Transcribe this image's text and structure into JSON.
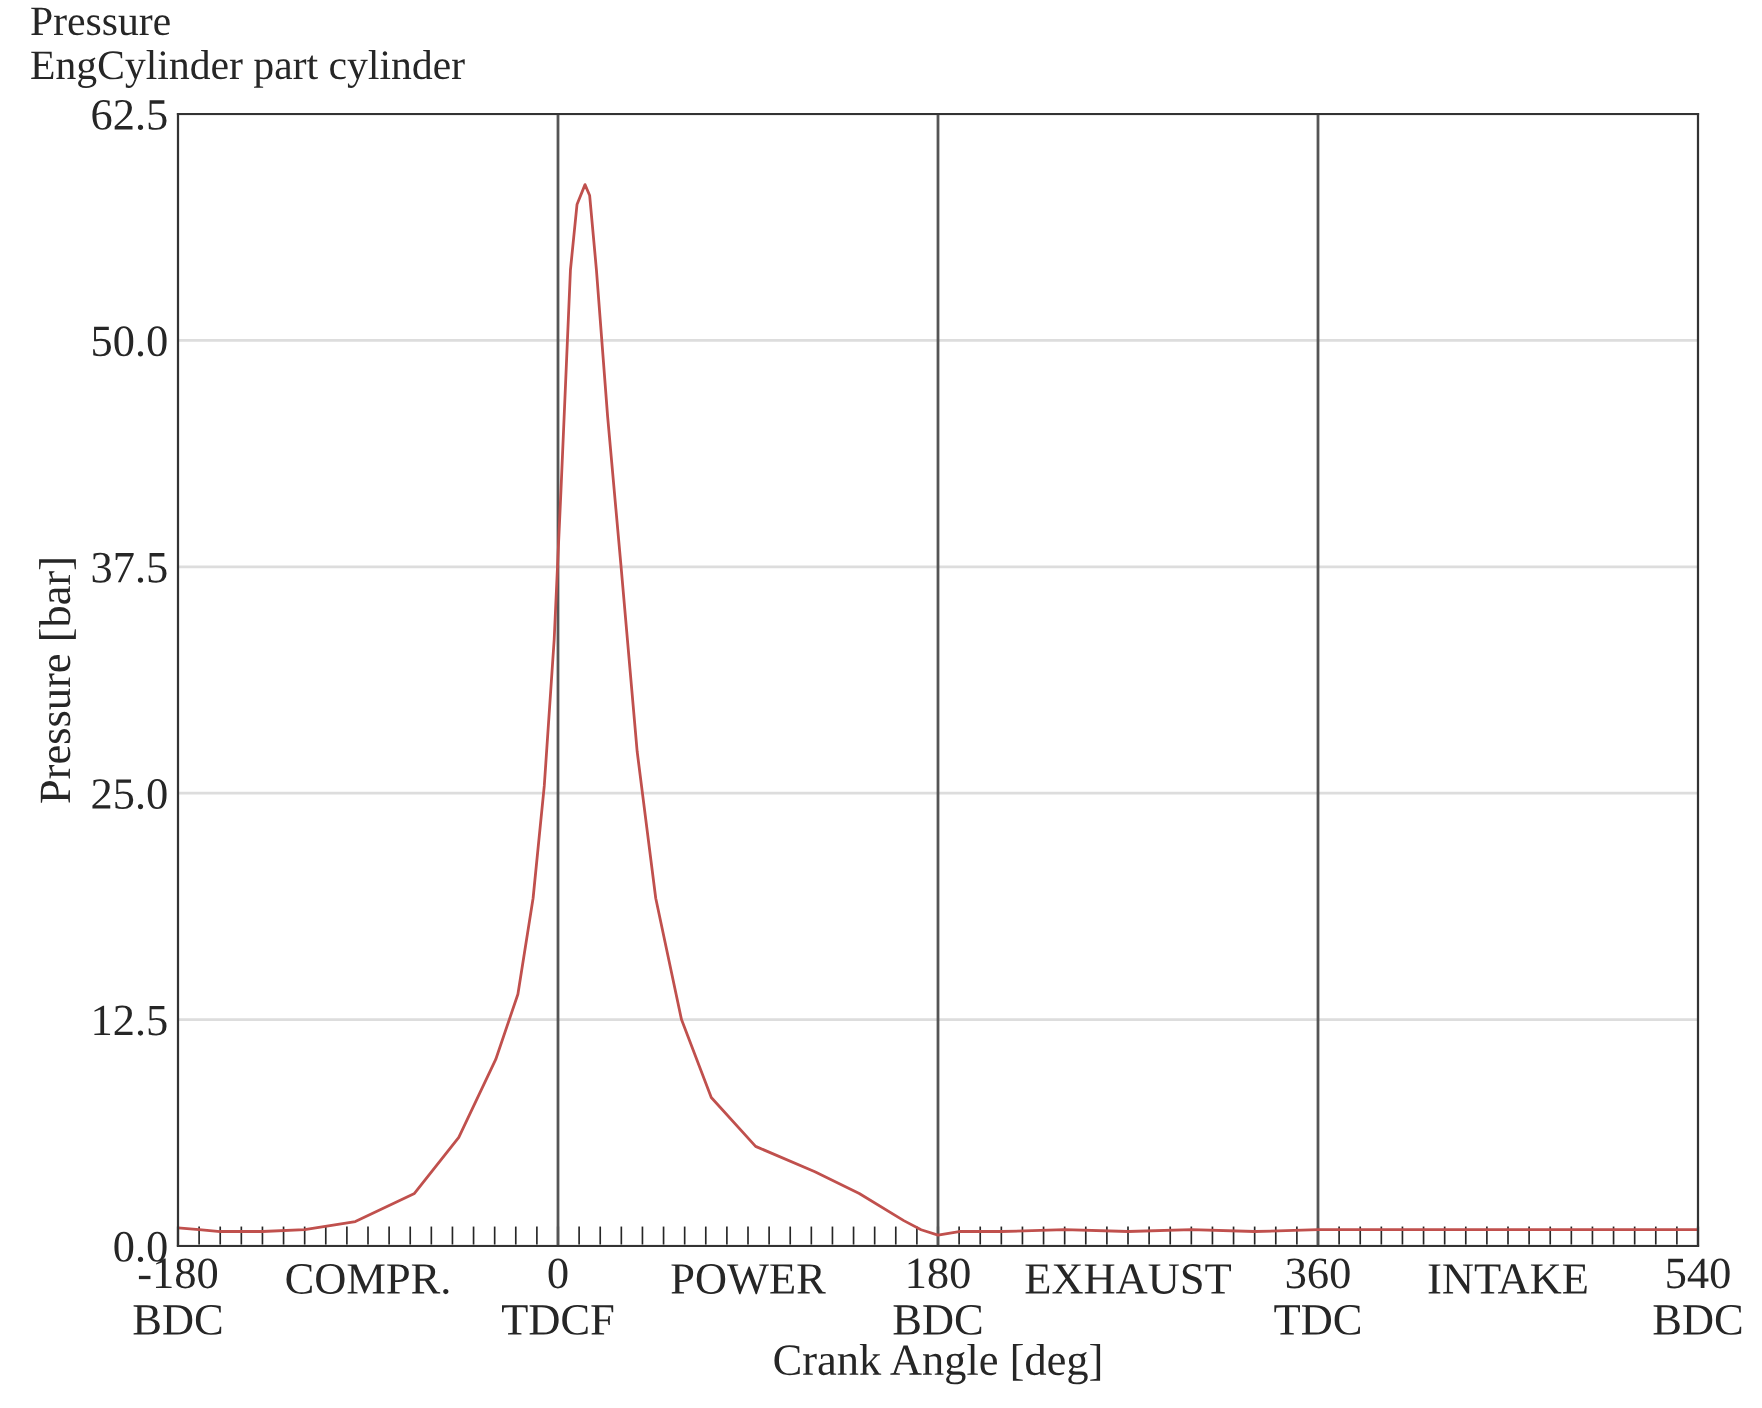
{
  "chart_data": {
    "type": "line",
    "title": "Pressure",
    "subtitle": "EngCylinder part cylinder",
    "xlabel": "Crank Angle [deg]",
    "ylabel": "Pressure [bar]",
    "xlim": [
      -180,
      540
    ],
    "ylim": [
      0,
      62.5
    ],
    "xticks": [
      {
        "value": -180,
        "label": "-180\nBDC"
      },
      {
        "value": 0,
        "label": "0\nTDCF"
      },
      {
        "value": 180,
        "label": "180\nBDC"
      },
      {
        "value": 360,
        "label": "360\nTDC"
      },
      {
        "value": 540,
        "label": "540\nBDC"
      }
    ],
    "yticks": [
      {
        "value": 0,
        "label": "0.0"
      },
      12.5,
      {
        "value": 25,
        "label": "25.0"
      },
      37.5,
      {
        "value": 50,
        "label": "50.0"
      },
      62.5
    ],
    "grid": "y",
    "ref_lines": [
      {
        "axis": "x",
        "value": 0,
        "color": "#555555"
      },
      {
        "axis": "x",
        "value": 180,
        "color": "#555555"
      },
      {
        "axis": "x",
        "value": 360,
        "color": "#555555"
      }
    ],
    "annotations": [
      "COMPR.",
      "POWER",
      "EXHAUST",
      "INTAKE"
    ],
    "x": [
      -180,
      -170,
      -160,
      -140,
      -120,
      -96,
      -68,
      -47,
      -29.5,
      -19,
      -11.8,
      -6.5,
      -1.8,
      1.4,
      5.9,
      9,
      12.8,
      15,
      18.2,
      23.5,
      29.8,
      37.5,
      46.3,
      58.5,
      72.6,
      93.6,
      121.7,
      142.7,
      163.8,
      172,
      180,
      190,
      210,
      240,
      270,
      300,
      330,
      360,
      390,
      420,
      450,
      480,
      510,
      540
    ],
    "series": [
      {
        "color": "#c0504d",
        "values": [
          1.0,
          0.9,
          0.8,
          0.8,
          0.9,
          1.35,
          2.9,
          6.0,
          10.3,
          13.9,
          19.2,
          25.4,
          33.5,
          41.7,
          53.9,
          57.5,
          58.6,
          58.0,
          53.9,
          45.8,
          37.6,
          27.3,
          19.2,
          12.5,
          8.2,
          5.5,
          4.1,
          2.9,
          1.4,
          0.9,
          0.6,
          0.8,
          0.8,
          0.9,
          0.8,
          0.9,
          0.8,
          0.9,
          0.9,
          0.9,
          0.9,
          0.9,
          0.9,
          0.9
        ]
      }
    ]
  }
}
